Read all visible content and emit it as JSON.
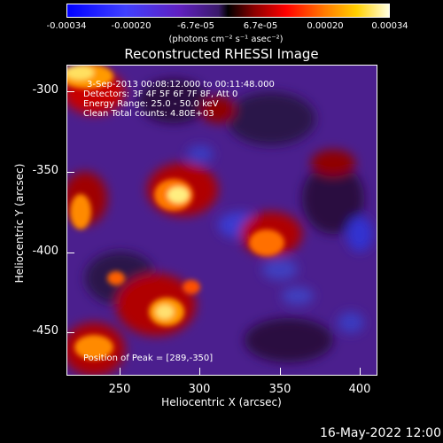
{
  "colorbar": {
    "ticks": [
      "-0.00034",
      "-0.00020",
      "-6.7e-05",
      "6.7e-05",
      "0.00020",
      "0.00034"
    ],
    "units": "(photons cm⁻² s⁻¹ asec⁻²)"
  },
  "plot": {
    "title": "Reconstructed RHESSI Image",
    "xlabel": "Heliocentric X (arcsec)",
    "ylabel": "Heliocentric Y (arcsec)",
    "xticks": [
      "250",
      "300",
      "350",
      "400"
    ],
    "yticks": [
      "-300",
      "-350",
      "-400",
      "-450"
    ],
    "info": [
      "3-Sep-2013 00:08:12.000 to 00:11:48.000",
      "Detectors: 3F 4F 5F 6F 7F 8F, Att 0",
      "Energy Range: 25.0 - 50.0 keV",
      "Clean     Total counts: 4.80E+03"
    ],
    "peak": "Position of Peak = [289,-350]"
  },
  "footer": {
    "date": "16-May-2022 12:00"
  }
}
